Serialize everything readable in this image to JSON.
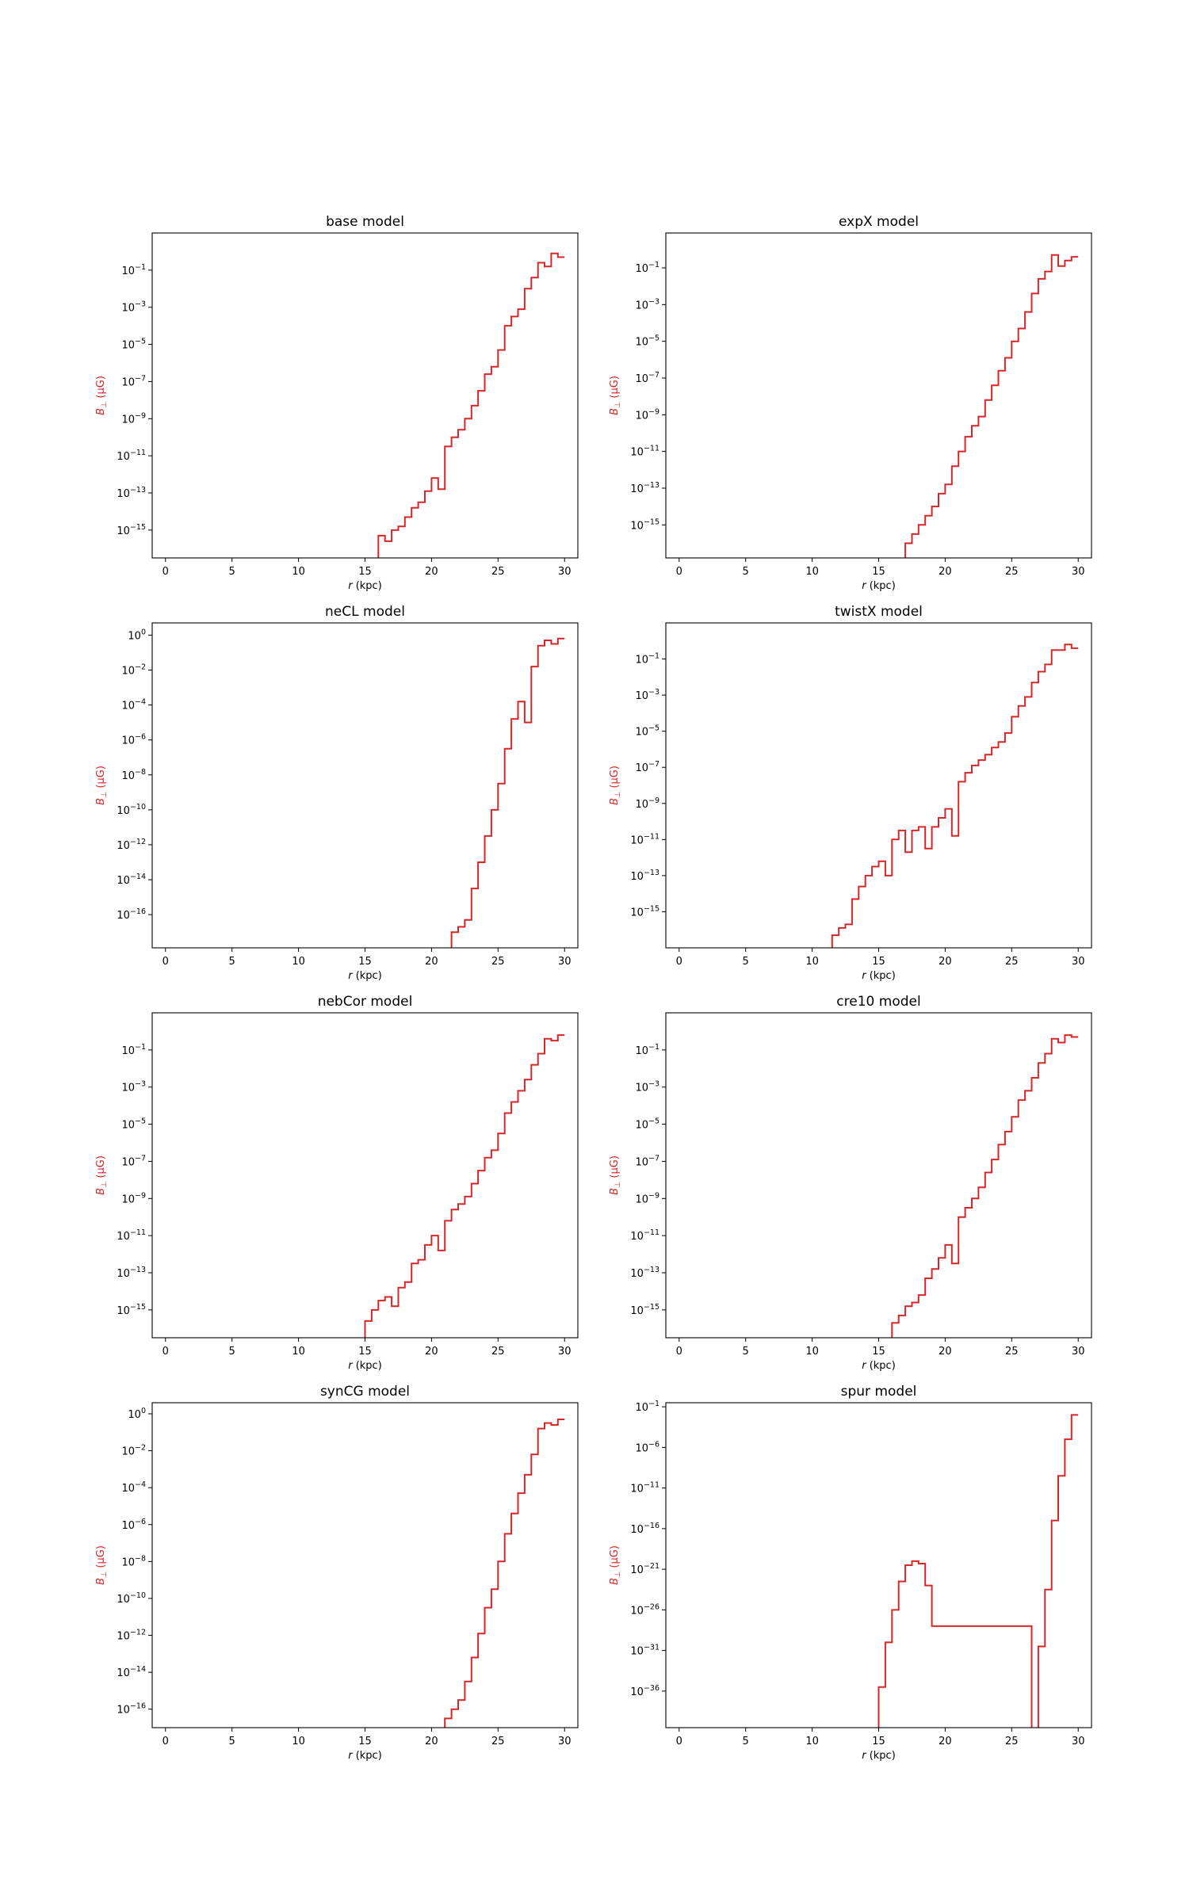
{
  "figure": {
    "xlabel_var": "r",
    "xlabel_unit": "(kpc)",
    "ylabel_var": "B",
    "ylabel_sub": "⊥",
    "ylabel_unit": "(μG)",
    "line_color": "#d62728"
  },
  "chart_data": [
    {
      "type": "line",
      "title": "base model",
      "xlim": [
        -1,
        31
      ],
      "ylog": true,
      "ylim_exp": [
        -16.5,
        1
      ],
      "xticks": [
        0,
        5,
        10,
        15,
        20,
        25,
        30
      ],
      "ytick_exps": [
        -15,
        -13,
        -11,
        -9,
        -7,
        -5,
        -3,
        -1
      ],
      "x": [
        16.0,
        16.5,
        17.0,
        17.5,
        18.0,
        18.5,
        19.0,
        19.5,
        20.0,
        20.5,
        21.0,
        21.5,
        22.0,
        22.5,
        23.0,
        23.5,
        24.0,
        24.5,
        25.0,
        25.5,
        26.0,
        26.5,
        27.0,
        27.5,
        28.0,
        28.5,
        29.0,
        29.5
      ],
      "y_exp": [
        -15.3,
        -15.6,
        -15.0,
        -14.8,
        -14.3,
        -13.8,
        -13.5,
        -12.9,
        -12.2,
        -12.8,
        -10.5,
        -10.0,
        -9.6,
        -9.0,
        -8.3,
        -7.5,
        -6.6,
        -6.2,
        -5.3,
        -4.0,
        -3.5,
        -3.1,
        -2.0,
        -1.4,
        -0.6,
        -0.8,
        -0.1,
        -0.3
      ]
    },
    {
      "type": "line",
      "title": "expX model",
      "xlim": [
        -1,
        31
      ],
      "ylog": true,
      "ylim_exp": [
        -16.8,
        0.9
      ],
      "xticks": [
        0,
        5,
        10,
        15,
        20,
        25,
        30
      ],
      "ytick_exps": [
        -15,
        -13,
        -11,
        -9,
        -7,
        -5,
        -3,
        -1
      ],
      "x": [
        17.0,
        17.5,
        18.0,
        18.5,
        19.0,
        19.5,
        20.0,
        20.5,
        21.0,
        21.5,
        22.0,
        22.5,
        23.0,
        23.5,
        24.0,
        24.5,
        25.0,
        25.5,
        26.0,
        26.5,
        27.0,
        27.5,
        28.0,
        28.5,
        29.0,
        29.5
      ],
      "y_exp": [
        -16.0,
        -15.5,
        -15.0,
        -14.5,
        -14.0,
        -13.3,
        -12.8,
        -11.8,
        -11.0,
        -10.2,
        -9.6,
        -9.1,
        -8.2,
        -7.4,
        -6.6,
        -5.9,
        -5.0,
        -4.3,
        -3.4,
        -2.4,
        -1.6,
        -1.2,
        -0.3,
        -0.9,
        -0.6,
        -0.4
      ]
    },
    {
      "type": "line",
      "title": "neCL model",
      "xlim": [
        -1,
        31
      ],
      "ylog": true,
      "ylim_exp": [
        -17.9,
        0.7
      ],
      "xticks": [
        0,
        5,
        10,
        15,
        20,
        25,
        30
      ],
      "ytick_exps": [
        -16,
        -14,
        -12,
        -10,
        -8,
        -6,
        -4,
        -2,
        0
      ],
      "x": [
        21.5,
        22.0,
        22.5,
        23.0,
        23.5,
        24.0,
        24.5,
        25.0,
        25.5,
        26.0,
        26.5,
        27.0,
        27.5,
        28.0,
        28.5,
        29.0,
        29.5
      ],
      "y_exp": [
        -17.0,
        -16.7,
        -16.3,
        -14.5,
        -13.0,
        -11.5,
        -10.0,
        -8.5,
        -6.5,
        -4.8,
        -3.8,
        -5.0,
        -1.8,
        -0.6,
        -0.3,
        -0.5,
        -0.2
      ]
    },
    {
      "type": "line",
      "title": "twistX model",
      "xlim": [
        -1,
        31
      ],
      "ylog": true,
      "ylim_exp": [
        -17.0,
        1.0
      ],
      "xticks": [
        0,
        5,
        10,
        15,
        20,
        25,
        30
      ],
      "ytick_exps": [
        -15,
        -13,
        -11,
        -9,
        -7,
        -5,
        -3,
        -1
      ],
      "x": [
        11.5,
        12.0,
        12.5,
        13.0,
        13.5,
        14.0,
        14.5,
        15.0,
        15.5,
        16.0,
        16.5,
        17.0,
        17.5,
        18.0,
        18.5,
        19.0,
        19.5,
        20.0,
        20.5,
        21.0,
        21.5,
        22.0,
        22.5,
        23.0,
        23.5,
        24.0,
        24.5,
        25.0,
        25.5,
        26.0,
        26.5,
        27.0,
        27.5,
        28.0,
        28.5,
        29.0,
        29.5
      ],
      "y_exp": [
        -16.3,
        -15.9,
        -15.7,
        -14.3,
        -13.6,
        -13.0,
        -12.5,
        -12.2,
        -13.0,
        -11.0,
        -10.5,
        -11.7,
        -10.5,
        -10.3,
        -11.5,
        -10.3,
        -9.8,
        -9.3,
        -10.8,
        -7.8,
        -7.3,
        -6.9,
        -6.6,
        -6.3,
        -5.9,
        -5.6,
        -5.1,
        -4.2,
        -3.6,
        -3.1,
        -2.3,
        -1.7,
        -1.3,
        -0.5,
        -0.5,
        -0.2,
        -0.4
      ]
    },
    {
      "type": "line",
      "title": "nebCor model",
      "xlim": [
        -1,
        31
      ],
      "ylog": true,
      "ylim_exp": [
        -16.5,
        1
      ],
      "xticks": [
        0,
        5,
        10,
        15,
        20,
        25,
        30
      ],
      "ytick_exps": [
        -15,
        -13,
        -11,
        -9,
        -7,
        -5,
        -3,
        -1
      ],
      "x": [
        15.0,
        15.5,
        16.0,
        16.5,
        17.0,
        17.5,
        18.0,
        18.5,
        19.0,
        19.5,
        20.0,
        20.5,
        21.0,
        21.5,
        22.0,
        22.5,
        23.0,
        23.5,
        24.0,
        24.5,
        25.0,
        25.5,
        26.0,
        26.5,
        27.0,
        27.5,
        28.0,
        28.5,
        29.0,
        29.5
      ],
      "y_exp": [
        -15.6,
        -15.0,
        -14.5,
        -14.3,
        -14.8,
        -13.8,
        -13.5,
        -12.5,
        -12.3,
        -11.5,
        -11.0,
        -11.8,
        -10.2,
        -9.6,
        -9.3,
        -8.9,
        -8.2,
        -7.5,
        -6.8,
        -6.4,
        -5.5,
        -4.4,
        -3.8,
        -3.2,
        -2.6,
        -1.8,
        -1.2,
        -0.4,
        -0.5,
        -0.2
      ]
    },
    {
      "type": "line",
      "title": "cre10 model",
      "xlim": [
        -1,
        31
      ],
      "ylog": true,
      "ylim_exp": [
        -16.5,
        1
      ],
      "xticks": [
        0,
        5,
        10,
        15,
        20,
        25,
        30
      ],
      "ytick_exps": [
        -15,
        -13,
        -11,
        -9,
        -7,
        -5,
        -3,
        -1
      ],
      "x": [
        16.0,
        16.5,
        17.0,
        17.5,
        18.0,
        18.5,
        19.0,
        19.5,
        20.0,
        20.5,
        21.0,
        21.5,
        22.0,
        22.5,
        23.0,
        23.5,
        24.0,
        24.5,
        25.0,
        25.5,
        26.0,
        26.5,
        27.0,
        27.5,
        28.0,
        28.5,
        29.0,
        29.5
      ],
      "y_exp": [
        -15.7,
        -15.3,
        -14.8,
        -14.6,
        -14.2,
        -13.3,
        -12.8,
        -12.2,
        -11.5,
        -12.5,
        -10.0,
        -9.5,
        -9.0,
        -8.4,
        -7.6,
        -6.9,
        -6.1,
        -5.4,
        -4.6,
        -3.7,
        -3.2,
        -2.5,
        -1.7,
        -1.2,
        -0.4,
        -0.6,
        -0.2,
        -0.3
      ]
    },
    {
      "type": "line",
      "title": "synCG model",
      "xlim": [
        -1,
        31
      ],
      "ylog": true,
      "ylim_exp": [
        -17.0,
        0.6
      ],
      "xticks": [
        0,
        5,
        10,
        15,
        20,
        25,
        30
      ],
      "ytick_exps": [
        -16,
        -14,
        -12,
        -10,
        -8,
        -6,
        -4,
        -2,
        0
      ],
      "x": [
        21.0,
        21.5,
        22.0,
        22.5,
        23.0,
        23.5,
        24.0,
        24.5,
        25.0,
        25.5,
        26.0,
        26.5,
        27.0,
        27.5,
        28.0,
        28.5,
        29.0,
        29.5
      ],
      "y_exp": [
        -16.5,
        -16.0,
        -15.5,
        -14.5,
        -13.2,
        -11.9,
        -10.5,
        -9.5,
        -8.0,
        -6.5,
        -5.4,
        -4.3,
        -3.3,
        -2.2,
        -0.8,
        -0.5,
        -0.6,
        -0.3
      ]
    },
    {
      "type": "line",
      "title": "spur model",
      "xlim": [
        -1,
        31
      ],
      "ylog": true,
      "ylim_exp": [
        -40.5,
        -0.5
      ],
      "xticks": [
        0,
        5,
        10,
        15,
        20,
        25,
        30
      ],
      "ytick_exps": [
        -36,
        -31,
        -26,
        -21,
        -16,
        -11,
        -6,
        -1
      ],
      "x": [
        14.5,
        15.0,
        15.5,
        16.0,
        16.5,
        17.0,
        17.5,
        18.0,
        18.5,
        19.0,
        26.5,
        27.0,
        27.5,
        28.0,
        28.5,
        29.0,
        29.5
      ],
      "y_exp": [
        -41,
        -35.5,
        -30.0,
        -26.0,
        -22.5,
        -20.5,
        -20.0,
        -20.3,
        -23.0,
        -28.0,
        -41,
        -30.5,
        -23.5,
        -15.0,
        -9.5,
        -5.0,
        -2.0
      ]
    }
  ]
}
